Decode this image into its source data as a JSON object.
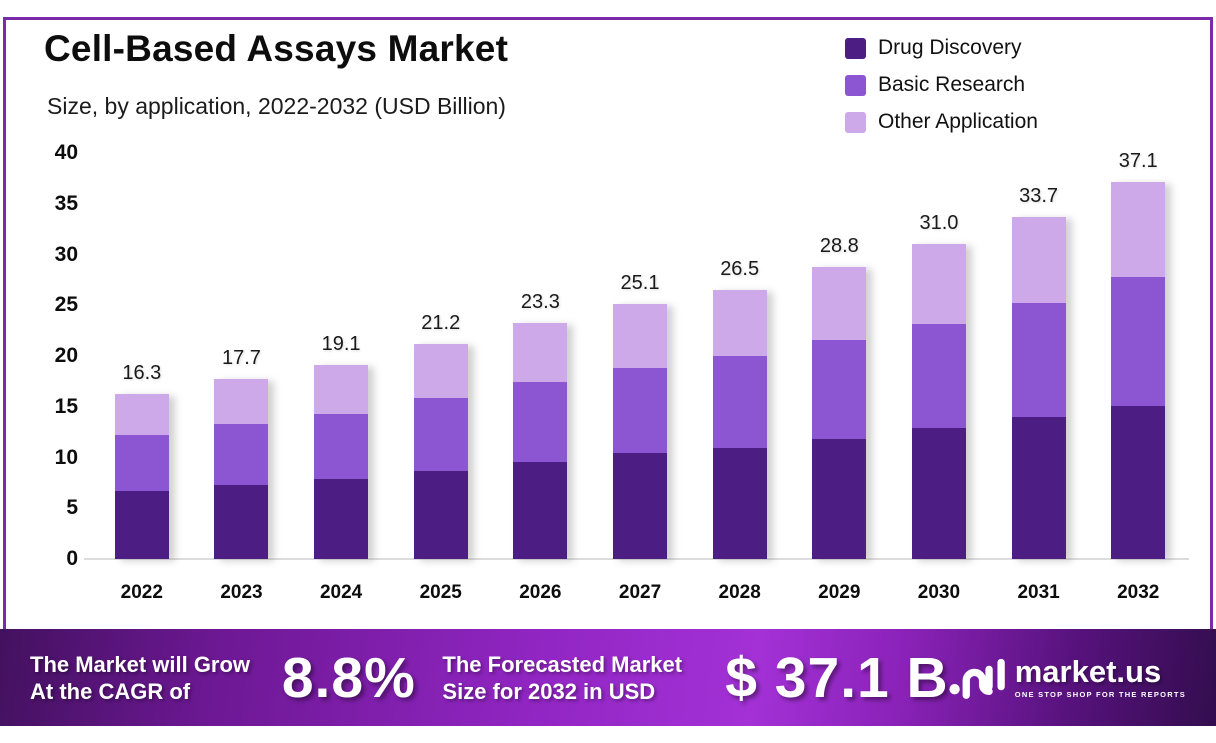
{
  "title": "Cell-Based Assays Market",
  "subtitle": "Size, by application, 2022-2032 (USD Billion)",
  "colors": {
    "frame_border": "#7b2aa8",
    "drug_discovery": "#4c1d82",
    "basic_research": "#8c55d2",
    "other_application": "#cda9ea",
    "axis_line": "#dcdcdc",
    "banner_text": "#ffffff"
  },
  "legend": [
    {
      "label": "Drug Discovery",
      "color": "#4c1d82"
    },
    {
      "label": "Basic Research",
      "color": "#8c55d2"
    },
    {
      "label": "Other Application",
      "color": "#cda9ea"
    }
  ],
  "chart_data": {
    "type": "bar",
    "stacked": true,
    "title": "Cell-Based Assays Market Size, by application, 2022-2032 (USD Billion)",
    "categories": [
      "2022",
      "2023",
      "2024",
      "2025",
      "2026",
      "2027",
      "2028",
      "2029",
      "2030",
      "2031",
      "2032"
    ],
    "series": [
      {
        "name": "Drug Discovery",
        "color": "#4c1d82",
        "values": [
          6.7,
          7.3,
          7.9,
          8.7,
          9.6,
          10.4,
          10.9,
          11.8,
          12.9,
          14.0,
          15.1
        ]
      },
      {
        "name": "Basic Research",
        "color": "#8c55d2",
        "values": [
          5.5,
          6.0,
          6.4,
          7.2,
          7.8,
          8.4,
          9.1,
          9.8,
          10.3,
          11.2,
          12.7
        ]
      },
      {
        "name": "Other Application",
        "color": "#cda9ea",
        "values": [
          4.1,
          4.4,
          4.8,
          5.3,
          5.9,
          6.3,
          6.5,
          7.2,
          7.8,
          8.5,
          9.3
        ]
      }
    ],
    "totals": [
      "16.3",
      "17.7",
      "19.1",
      "21.2",
      "23.3",
      "25.1",
      "26.5",
      "28.8",
      "31.0",
      "33.7",
      "37.1"
    ],
    "xlabel": "",
    "ylabel": "",
    "ylim": [
      0,
      40
    ],
    "yticks": [
      0,
      5,
      10,
      15,
      20,
      25,
      30,
      35,
      40
    ],
    "grid": false,
    "legend_position": "top-right"
  },
  "banner": {
    "grow_line1": "The Market will Grow",
    "grow_line2": "At the CAGR of",
    "cagr_value": "8.8%",
    "forecast_line1": "The Forecasted Market",
    "forecast_line2": "Size for 2032 in USD",
    "forecast_value": "$ 37.1 B",
    "brand_name": "market.us",
    "brand_tagline": "ONE STOP SHOP FOR THE REPORTS"
  }
}
